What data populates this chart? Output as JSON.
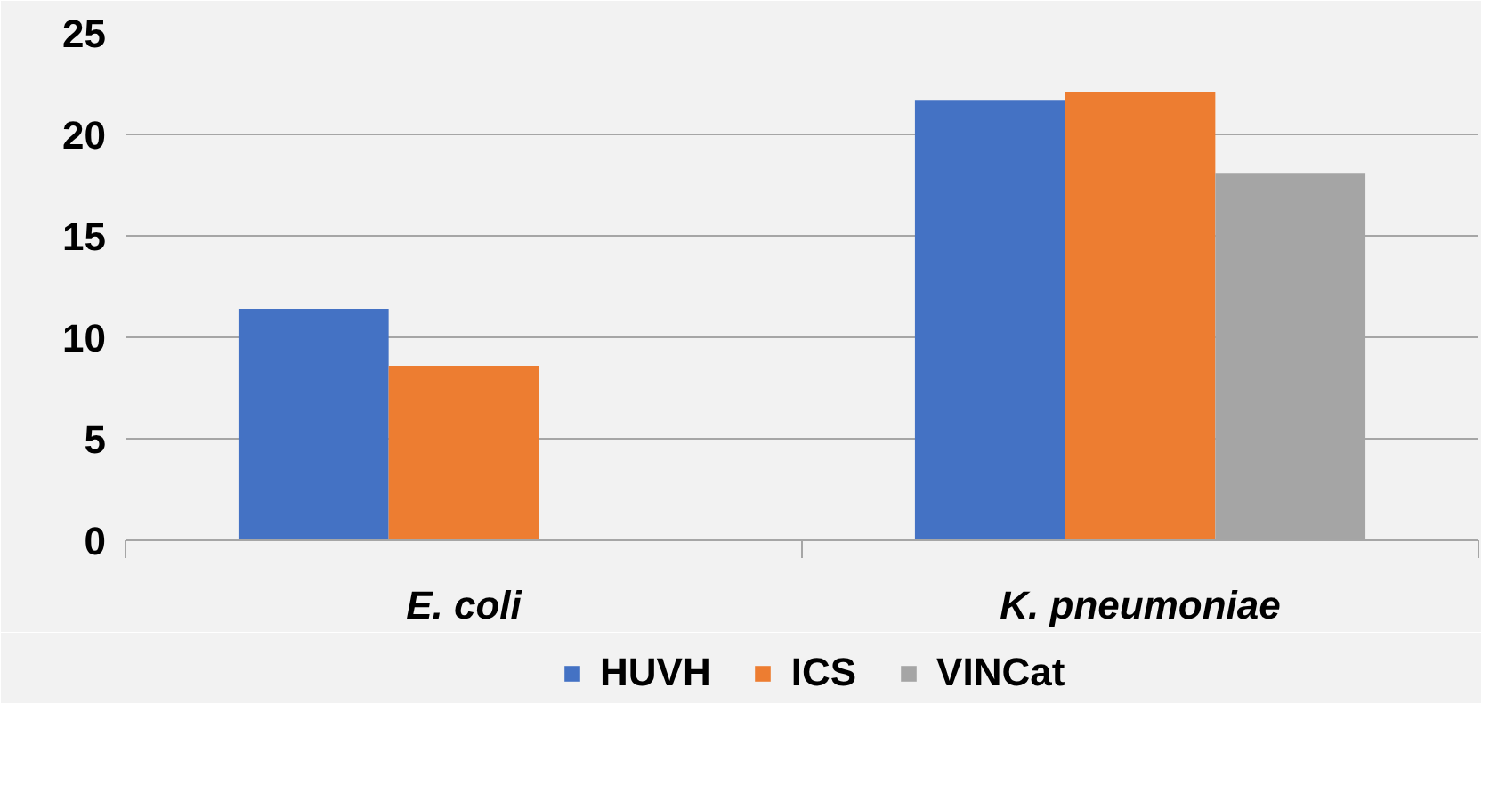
{
  "chart_data": {
    "type": "bar",
    "categories": [
      "E. coli",
      "K. pneumoniae"
    ],
    "series": [
      {
        "name": "HUVH",
        "color": "#4472c4",
        "values": [
          11.4,
          21.7
        ]
      },
      {
        "name": "ICS",
        "color": "#ed7d31",
        "values": [
          8.6,
          22.1
        ]
      },
      {
        "name": "VINCat",
        "color": "#a5a5a5",
        "values": [
          null,
          18.1
        ]
      }
    ],
    "ylim": [
      0,
      25
    ],
    "yticks": [
      0,
      5,
      10,
      15,
      20,
      25
    ],
    "grid": "y",
    "legend": "bottom"
  }
}
